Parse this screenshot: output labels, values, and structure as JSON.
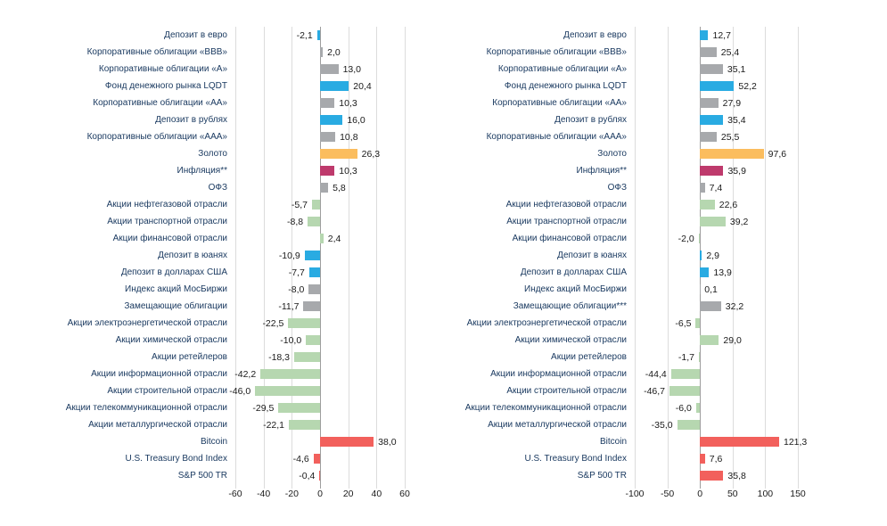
{
  "colors": {
    "deposit": "#29abe2",
    "bonds": "#a7a9ac",
    "gold": "#fbbd5e",
    "inflation": "#be3a6c",
    "equity": "#b6d7b0",
    "foreign": "#f2605c"
  },
  "chart_data": [
    {
      "type": "bar",
      "orientation": "horizontal",
      "title": "",
      "xlabel": "",
      "ylabel": "",
      "xlim": [
        -60,
        60
      ],
      "xticks": [
        -60,
        -40,
        -20,
        0,
        20,
        40,
        60
      ],
      "grid": true,
      "legend": false,
      "categories": [
        "Депозит в евро",
        "Корпоративные облигации «ВВВ»",
        "Корпоративные облигации «А»",
        "Фонд денежного рынка LQDT",
        "Корпоративные облигации «АА»",
        "Депозит в рублях",
        "Корпоративные облигации «ААА»",
        "Золото",
        "Инфляция**",
        "ОФЗ",
        "Акции нефтегазовой отрасли",
        "Акции транспортной отрасли",
        "Акции финансовой отрасли",
        "Депозит в юанях",
        "Депозит в долларах США",
        "Индекс акций МосБиржи",
        "Замещающие облигации",
        "Акции электроэнергетической отрасли",
        "Акции химической отрасли",
        "Акции ретейлеров",
        "Акции информационной отрасли",
        "Акции строительной отрасли",
        "Акции телекоммуникационной отрасли",
        "Акции металлургической отрасли",
        "Bitcoin",
        "U.S. Treasury Bond Index",
        "S&P 500 TR"
      ],
      "values": [
        -2.1,
        2.0,
        13.0,
        20.4,
        10.3,
        16.0,
        10.8,
        26.3,
        10.3,
        5.8,
        -5.7,
        -8.8,
        2.4,
        -10.9,
        -7.7,
        -8.0,
        -11.7,
        -22.5,
        -10.0,
        -18.3,
        -42.2,
        -46.0,
        -29.5,
        -22.1,
        38.0,
        -4.6,
        -0.4
      ],
      "bar_colors": [
        "deposit",
        "bonds",
        "bonds",
        "deposit",
        "bonds",
        "deposit",
        "bonds",
        "gold",
        "inflation",
        "bonds",
        "equity",
        "equity",
        "equity",
        "deposit",
        "deposit",
        "bonds",
        "bonds",
        "equity",
        "equity",
        "equity",
        "equity",
        "equity",
        "equity",
        "equity",
        "foreign",
        "foreign",
        "foreign"
      ]
    },
    {
      "type": "bar",
      "orientation": "horizontal",
      "title": "",
      "xlabel": "",
      "ylabel": "",
      "xlim": [
        -100,
        150
      ],
      "xticks": [
        -100,
        -50,
        0,
        50,
        100,
        150
      ],
      "grid": true,
      "legend": false,
      "categories": [
        "Депозит в евро",
        "Корпоративные облигации «ВВВ»",
        "Корпоративные облигации «А»",
        "Фонд денежного рынка LQDT",
        "Корпоративные облигации «АА»",
        "Депозит в рублях",
        "Корпоративные облигации «ААА»",
        "Золото",
        "Инфляция**",
        "ОФЗ",
        "Акции нефтегазовой отрасли",
        "Акции транспортной отрасли",
        "Акции финансовой отрасли",
        "Депозит в юанях",
        "Депозит в долларах США",
        "Индекс акций МосБиржи",
        "Замещающие облигации***",
        "Акции электроэнергетической отрасли",
        "Акции химической отрасли",
        "Акции ретейлеров",
        "Акции информационной отрасли",
        "Акции строительной отрасли",
        "Акции телекоммуникационной отрасли",
        "Акции металлургической отрасли",
        "Bitcoin",
        "U.S. Treasury Bond Index",
        "S&P 500 TR"
      ],
      "values": [
        12.7,
        25.4,
        35.1,
        52.2,
        27.9,
        35.4,
        25.5,
        97.6,
        35.9,
        7.4,
        22.6,
        39.2,
        -2.0,
        2.9,
        13.9,
        0.1,
        32.2,
        -6.5,
        29.0,
        -1.7,
        -44.4,
        -46.7,
        -6.0,
        -35.0,
        121.3,
        7.6,
        35.8
      ],
      "bar_colors": [
        "deposit",
        "bonds",
        "bonds",
        "deposit",
        "bonds",
        "deposit",
        "bonds",
        "gold",
        "inflation",
        "bonds",
        "equity",
        "equity",
        "equity",
        "deposit",
        "deposit",
        "bonds",
        "bonds",
        "equity",
        "equity",
        "equity",
        "equity",
        "equity",
        "equity",
        "equity",
        "foreign",
        "foreign",
        "foreign"
      ]
    }
  ]
}
